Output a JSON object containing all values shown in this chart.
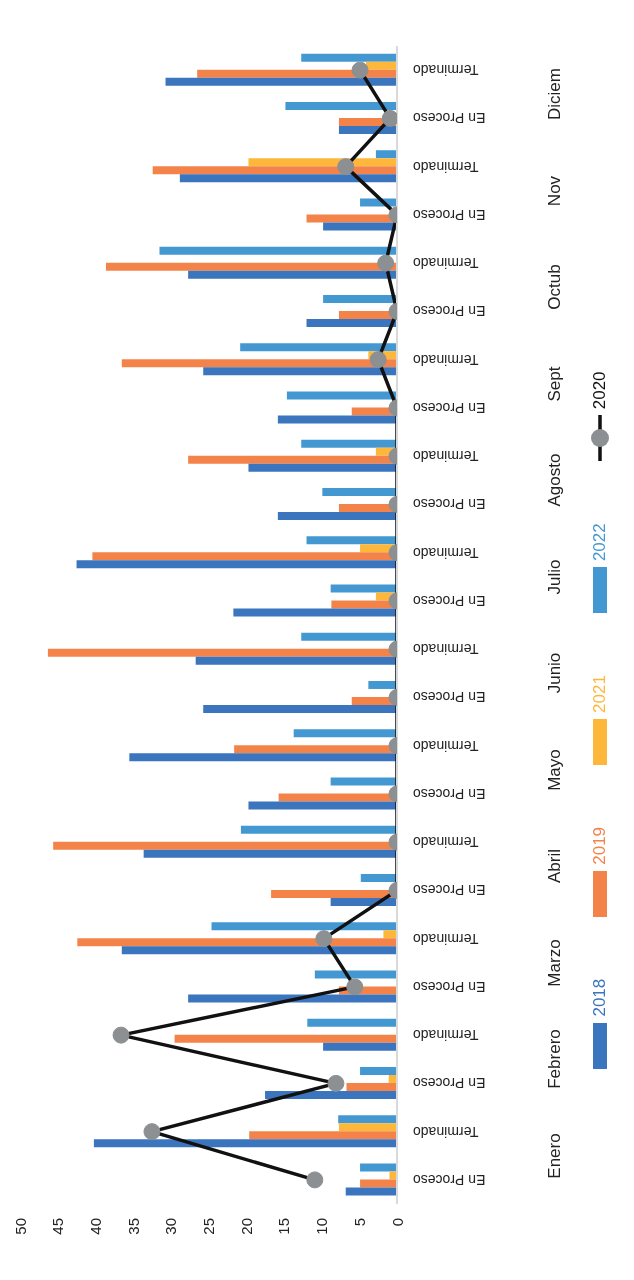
{
  "chart_data": {
    "type": "bar",
    "orientation": "horizontal",
    "categories": [
      "Terminado",
      "En Proceso",
      "Terminado",
      "En Proceso",
      "Terminado",
      "En Proceso",
      "Terminado",
      "En Proceso",
      "Terminado",
      "En Proceso",
      "Terminado",
      "En Proceso",
      "Terminado",
      "En Proceso",
      "Terminado",
      "En Proceso",
      "Terminado",
      "En Proceso",
      "Terminado",
      "En Proceso",
      "Terminado",
      "En Proceso",
      "Terminado",
      "En Proceso"
    ],
    "annotations": [
      "Diciem",
      "Nov",
      "Octub",
      "Sept",
      "Agosto",
      "Julio",
      "Junio",
      "Mayo",
      "Abril",
      "Marzo",
      "Febrero",
      "Enero"
    ],
    "series": [
      {
        "name": "2018",
        "color": "#3a75bd",
        "values": [
          30.7,
          7.7,
          28.8,
          9.8,
          27.7,
          12.0,
          25.7,
          15.8,
          19.7,
          15.8,
          42.5,
          21.7,
          26.7,
          25.7,
          35.5,
          19.7,
          33.6,
          8.8,
          36.5,
          27.7,
          9.8,
          17.5,
          40.2,
          6.8
        ]
      },
      {
        "name": "2019",
        "color": "#f4834a",
        "values": [
          26.5,
          7.7,
          32.4,
          12.0,
          38.6,
          7.7,
          36.5,
          6.0,
          27.7,
          7.7,
          40.4,
          8.7,
          46.3,
          6.0,
          21.6,
          15.7,
          45.6,
          16.7,
          42.4,
          7.7,
          29.5,
          6.7,
          19.6,
          4.9
        ]
      },
      {
        "name": "2021",
        "color": "#fdb73b",
        "values": [
          4.1,
          0,
          19.7,
          0,
          null,
          0,
          3.8,
          0,
          2.8,
          0,
          4.9,
          2.8,
          0,
          0,
          null,
          null,
          null,
          0,
          1.8,
          0,
          0,
          1.1,
          7.7,
          1.0
        ]
      },
      {
        "name": "2022",
        "color": "#4498d2",
        "values": [
          12.7,
          14.8,
          2.8,
          4.9,
          31.5,
          9.8,
          20.8,
          14.6,
          12.7,
          9.9,
          12.0,
          8.8,
          12.7,
          3.8,
          13.7,
          8.8,
          20.7,
          4.8,
          24.6,
          10.9,
          11.9,
          4.9,
          7.8,
          4.9
        ]
      },
      {
        "name": "2020",
        "type": "line",
        "color": "#111111",
        "values": [
          4.9,
          0.9,
          6.8,
          0,
          1.5,
          0,
          2.5,
          0,
          0,
          0,
          0,
          0,
          0,
          0,
          0,
          0,
          0,
          0,
          9.7,
          5.6,
          36.6,
          8.1,
          32.5,
          10.9
        ]
      }
    ],
    "xlim": [
      50,
      0
    ],
    "xticks": [
      50,
      45,
      40,
      35,
      30,
      25,
      20,
      15,
      10,
      5,
      0
    ],
    "grid": false,
    "legend": "right",
    "marker": "circle"
  }
}
